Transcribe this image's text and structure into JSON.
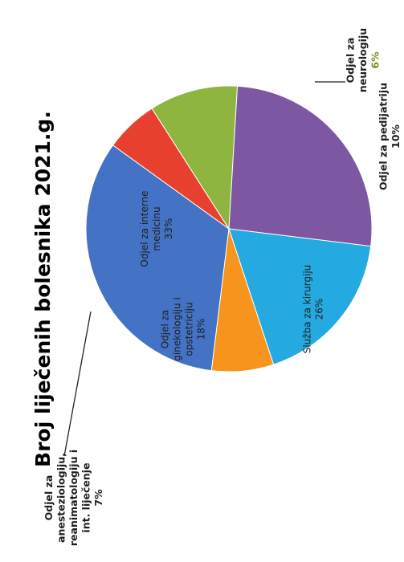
{
  "chart_data": {
    "type": "pie",
    "title": "Broj liječenih bolesnika 2021.g.",
    "slices": [
      {
        "label": [
          "Odjel za interne",
          "medicinu"
        ],
        "value": 33,
        "pct": "33%",
        "color": "#4472C4",
        "placement": "inside"
      },
      {
        "label": [
          "Odjel za",
          "neurologiju"
        ],
        "value": 6,
        "pct": "6%",
        "color": "#E8402E",
        "placement": "outside-right"
      },
      {
        "label": [
          "Odjel za pedijatriju"
        ],
        "value": 10,
        "pct": "10%",
        "color": "#8DB540",
        "placement": "outside-right"
      },
      {
        "label": [
          "Služba za kirurgiju"
        ],
        "value": 26,
        "pct": "26%",
        "color": "#7E57A3",
        "placement": "inside"
      },
      {
        "label": [
          "Odjel za",
          "ginekologiju i",
          "opstetriciju"
        ],
        "value": 18,
        "pct": "18%",
        "color": "#24A9E1",
        "placement": "inside"
      },
      {
        "label": [
          "Odjel za",
          "anesteziologiju,",
          "reanimatologiju i",
          "int. liječenje"
        ],
        "value": 7,
        "pct": "7%",
        "color": "#F7941D",
        "placement": "outside-left"
      }
    ]
  }
}
